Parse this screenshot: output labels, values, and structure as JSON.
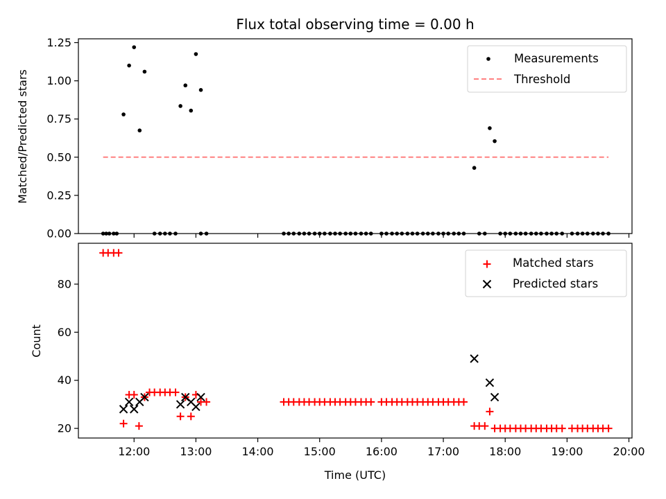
{
  "chart_data": [
    {
      "type": "scatter",
      "title": "Flux total observing time = 0.00 h",
      "xlabel": "",
      "ylabel": "Matched/Predicted stars",
      "xlim_hours": [
        11.1,
        20.05
      ],
      "ylim": [
        0,
        1.275
      ],
      "yticks": [
        0.0,
        0.25,
        0.5,
        0.75,
        1.0,
        1.25
      ],
      "ytick_labels": [
        "0.00",
        "0.25",
        "0.50",
        "0.75",
        "1.00",
        "1.25"
      ],
      "legend_position": "top-right",
      "grid": false,
      "series": [
        {
          "name": "Measurements",
          "marker": "dot",
          "color": "#000000",
          "points": [
            [
              11.5,
              0
            ],
            [
              11.55,
              0
            ],
            [
              11.6,
              0
            ],
            [
              11.67,
              0
            ],
            [
              11.72,
              0
            ],
            [
              11.83,
              0.78
            ],
            [
              11.92,
              1.1
            ],
            [
              12.0,
              1.22
            ],
            [
              12.09,
              0.675
            ],
            [
              12.17,
              1.06
            ],
            [
              12.33,
              0
            ],
            [
              12.42,
              0
            ],
            [
              12.5,
              0
            ],
            [
              12.58,
              0
            ],
            [
              12.67,
              0
            ],
            [
              12.75,
              0.835
            ],
            [
              12.83,
              0.97
            ],
            [
              12.92,
              0.805
            ],
            [
              13.0,
              1.175
            ],
            [
              13.08,
              0.94
            ],
            [
              13.08,
              0
            ],
            [
              13.17,
              0
            ],
            [
              14.42,
              0
            ],
            [
              14.5,
              0
            ],
            [
              14.58,
              0
            ],
            [
              14.67,
              0
            ],
            [
              14.75,
              0
            ],
            [
              14.83,
              0
            ],
            [
              14.92,
              0
            ],
            [
              15.0,
              0
            ],
            [
              15.08,
              0
            ],
            [
              15.17,
              0
            ],
            [
              15.25,
              0
            ],
            [
              15.33,
              0
            ],
            [
              15.42,
              0
            ],
            [
              15.5,
              0
            ],
            [
              15.58,
              0
            ],
            [
              15.67,
              0
            ],
            [
              15.75,
              0
            ],
            [
              15.83,
              0
            ],
            [
              16.0,
              0
            ],
            [
              16.08,
              0
            ],
            [
              16.17,
              0
            ],
            [
              16.25,
              0
            ],
            [
              16.33,
              0
            ],
            [
              16.42,
              0
            ],
            [
              16.5,
              0
            ],
            [
              16.58,
              0
            ],
            [
              16.67,
              0
            ],
            [
              16.75,
              0
            ],
            [
              16.83,
              0
            ],
            [
              16.92,
              0
            ],
            [
              17.0,
              0
            ],
            [
              17.08,
              0
            ],
            [
              17.17,
              0
            ],
            [
              17.25,
              0
            ],
            [
              17.33,
              0
            ],
            [
              17.5,
              0.43
            ],
            [
              17.58,
              0
            ],
            [
              17.67,
              0
            ],
            [
              17.75,
              0.69
            ],
            [
              17.83,
              0.605
            ],
            [
              17.92,
              0
            ],
            [
              18.0,
              0
            ],
            [
              18.08,
              0
            ],
            [
              18.17,
              0
            ],
            [
              18.25,
              0
            ],
            [
              18.33,
              0
            ],
            [
              18.42,
              0
            ],
            [
              18.5,
              0
            ],
            [
              18.58,
              0
            ],
            [
              18.67,
              0
            ],
            [
              18.75,
              0
            ],
            [
              18.83,
              0
            ],
            [
              18.92,
              0
            ],
            [
              19.08,
              0
            ],
            [
              19.17,
              0
            ],
            [
              19.25,
              0
            ],
            [
              19.33,
              0
            ],
            [
              19.42,
              0
            ],
            [
              19.5,
              0
            ],
            [
              19.58,
              0
            ],
            [
              19.67,
              0
            ]
          ]
        },
        {
          "name": "Threshold",
          "style": "dashed",
          "color": "#ff8080",
          "x_range": [
            11.5,
            19.67
          ],
          "y": 0.5
        }
      ]
    },
    {
      "type": "scatter",
      "title": "",
      "xlabel": "Time (UTC)",
      "ylabel": "Count",
      "xlim_hours": [
        11.1,
        20.05
      ],
      "ylim": [
        16,
        97
      ],
      "yticks": [
        20,
        40,
        60,
        80
      ],
      "ytick_labels": [
        "20",
        "40",
        "60",
        "80"
      ],
      "xticks_hours": [
        12,
        13,
        14,
        15,
        16,
        17,
        18,
        19,
        20
      ],
      "xtick_labels": [
        "12:00",
        "13:00",
        "14:00",
        "15:00",
        "16:00",
        "17:00",
        "18:00",
        "19:00",
        "20:00"
      ],
      "legend_position": "top-right",
      "grid": false,
      "series": [
        {
          "name": "Matched stars",
          "marker": "plus",
          "color": "#ff0000",
          "points": [
            [
              11.5,
              93
            ],
            [
              11.58,
              93
            ],
            [
              11.67,
              93
            ],
            [
              11.75,
              93
            ],
            [
              11.83,
              22
            ],
            [
              11.92,
              34
            ],
            [
              12.0,
              34
            ],
            [
              12.08,
              21
            ],
            [
              12.17,
              33
            ],
            [
              12.25,
              35
            ],
            [
              12.33,
              35
            ],
            [
              12.42,
              35
            ],
            [
              12.5,
              35
            ],
            [
              12.58,
              35
            ],
            [
              12.67,
              35
            ],
            [
              12.75,
              25
            ],
            [
              12.83,
              33
            ],
            [
              12.92,
              25
            ],
            [
              13.0,
              34
            ],
            [
              13.08,
              31
            ],
            [
              13.17,
              31
            ],
            [
              14.42,
              31
            ],
            [
              14.5,
              31
            ],
            [
              14.58,
              31
            ],
            [
              14.67,
              31
            ],
            [
              14.75,
              31
            ],
            [
              14.83,
              31
            ],
            [
              14.92,
              31
            ],
            [
              15.0,
              31
            ],
            [
              15.08,
              31
            ],
            [
              15.17,
              31
            ],
            [
              15.25,
              31
            ],
            [
              15.33,
              31
            ],
            [
              15.42,
              31
            ],
            [
              15.5,
              31
            ],
            [
              15.58,
              31
            ],
            [
              15.67,
              31
            ],
            [
              15.75,
              31
            ],
            [
              15.83,
              31
            ],
            [
              16.0,
              31
            ],
            [
              16.08,
              31
            ],
            [
              16.17,
              31
            ],
            [
              16.25,
              31
            ],
            [
              16.33,
              31
            ],
            [
              16.42,
              31
            ],
            [
              16.5,
              31
            ],
            [
              16.58,
              31
            ],
            [
              16.67,
              31
            ],
            [
              16.75,
              31
            ],
            [
              16.83,
              31
            ],
            [
              16.92,
              31
            ],
            [
              17.0,
              31
            ],
            [
              17.08,
              31
            ],
            [
              17.17,
              31
            ],
            [
              17.25,
              31
            ],
            [
              17.33,
              31
            ],
            [
              17.5,
              21
            ],
            [
              17.58,
              21
            ],
            [
              17.67,
              21
            ],
            [
              17.75,
              27
            ],
            [
              17.83,
              20
            ],
            [
              17.92,
              20
            ],
            [
              18.0,
              20
            ],
            [
              18.08,
              20
            ],
            [
              18.17,
              20
            ],
            [
              18.25,
              20
            ],
            [
              18.33,
              20
            ],
            [
              18.42,
              20
            ],
            [
              18.5,
              20
            ],
            [
              18.58,
              20
            ],
            [
              18.67,
              20
            ],
            [
              18.75,
              20
            ],
            [
              18.83,
              20
            ],
            [
              18.92,
              20
            ],
            [
              19.08,
              20
            ],
            [
              19.17,
              20
            ],
            [
              19.25,
              20
            ],
            [
              19.33,
              20
            ],
            [
              19.42,
              20
            ],
            [
              19.5,
              20
            ],
            [
              19.58,
              20
            ],
            [
              19.67,
              20
            ]
          ]
        },
        {
          "name": "Predicted stars",
          "marker": "x",
          "color": "#000000",
          "points": [
            [
              11.83,
              28
            ],
            [
              11.92,
              31
            ],
            [
              12.0,
              28
            ],
            [
              12.09,
              31
            ],
            [
              12.17,
              33
            ],
            [
              12.75,
              30
            ],
            [
              12.83,
              33
            ],
            [
              12.92,
              31
            ],
            [
              13.0,
              29
            ],
            [
              13.08,
              33
            ],
            [
              17.5,
              49
            ],
            [
              17.75,
              39
            ],
            [
              17.83,
              33
            ]
          ]
        }
      ]
    }
  ]
}
